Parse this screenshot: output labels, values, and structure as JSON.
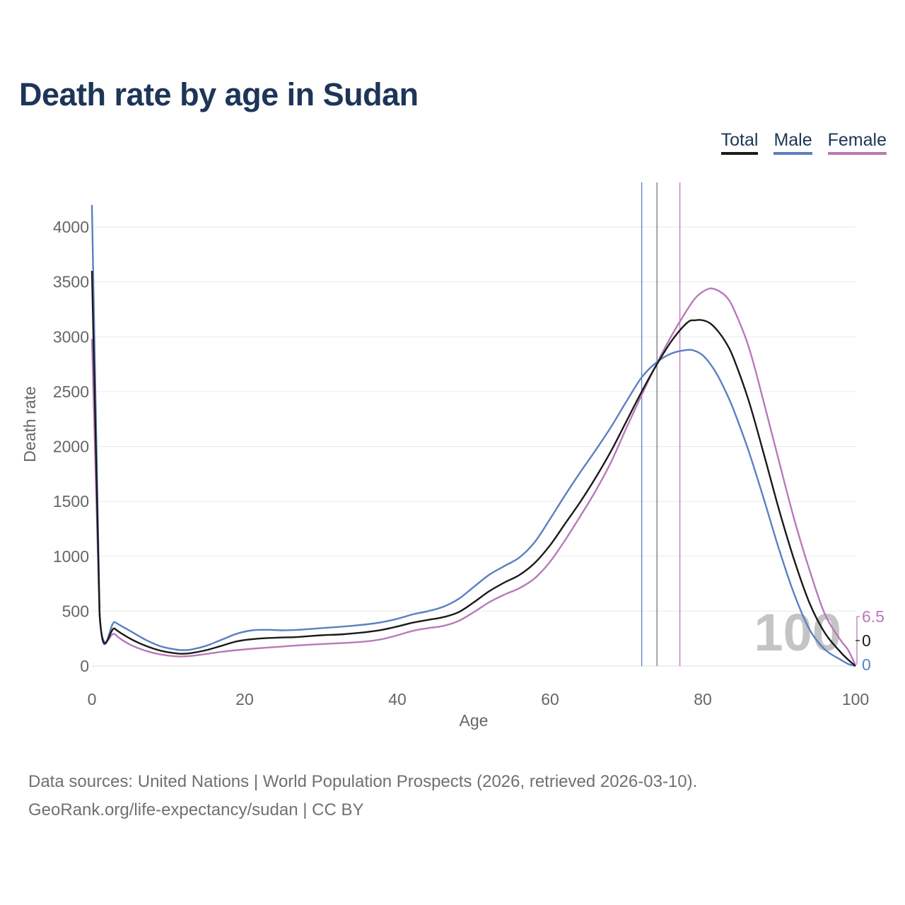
{
  "title": "Death rate by age in Sudan",
  "legend": [
    {
      "label": "Total",
      "color": "#1a1a1a"
    },
    {
      "label": "Male",
      "color": "#5a7fc2"
    },
    {
      "label": "Female",
      "color": "#b87ab8"
    }
  ],
  "footer": {
    "line1": "Data sources: United Nations | World Population Prospects (2026, retrieved 2026-03-10).",
    "line2": "GeoRank.org/life-expectancy/sudan | CC BY"
  },
  "chart_data": {
    "type": "line",
    "title": "Death rate by age in Sudan",
    "xlabel": "Age",
    "ylabel": "Death rate",
    "xlim": [
      0,
      100
    ],
    "ylim": [
      0,
      4300
    ],
    "xticks": [
      0,
      20,
      40,
      60,
      80,
      100
    ],
    "yticks": [
      0,
      500,
      1000,
      1500,
      2000,
      2500,
      3000,
      3500,
      4000
    ],
    "grid": true,
    "legend_position": "top-right",
    "watermark": "100",
    "vertical_lines": [
      {
        "name": "Male",
        "x": 72,
        "color": "#5a7fc2"
      },
      {
        "name": "Total",
        "x": 74,
        "color": "#777777"
      },
      {
        "name": "Female",
        "x": 77,
        "color": "#b87ab8"
      }
    ],
    "end_labels": [
      {
        "series": "Female",
        "label": "6.5",
        "color": "#b87ab8"
      },
      {
        "series": "Total",
        "label": "0",
        "color": "#1a1a1a"
      },
      {
        "series": "Male",
        "label": "0",
        "color": "#5a7fc2"
      }
    ],
    "x": [
      0,
      1,
      3,
      5,
      7,
      9,
      11,
      12,
      13,
      15,
      17,
      19,
      21,
      23,
      25,
      27,
      30,
      33,
      36,
      38,
      40,
      42,
      44,
      46,
      48,
      50,
      52,
      54,
      56,
      58,
      60,
      62,
      64,
      66,
      68,
      70,
      72,
      74,
      76,
      78,
      79,
      80,
      81,
      82,
      83,
      84,
      86,
      88,
      90,
      92,
      94,
      96,
      98,
      99,
      100
    ],
    "series": [
      {
        "name": "Total",
        "color": "#1a1a1a",
        "values": [
          3600,
          480,
          340,
          250,
          185,
          140,
          115,
          112,
          118,
          145,
          185,
          225,
          245,
          255,
          260,
          265,
          280,
          290,
          310,
          330,
          360,
          395,
          420,
          445,
          490,
          580,
          680,
          760,
          830,
          940,
          1100,
          1300,
          1500,
          1720,
          1960,
          2230,
          2500,
          2750,
          2970,
          3130,
          3150,
          3150,
          3120,
          3050,
          2950,
          2810,
          2420,
          1930,
          1420,
          960,
          570,
          300,
          130,
          60,
          0
        ]
      },
      {
        "name": "Male",
        "color": "#5a7fc2",
        "values": [
          4200,
          500,
          400,
          320,
          240,
          180,
          150,
          145,
          150,
          185,
          240,
          295,
          325,
          330,
          325,
          330,
          345,
          360,
          380,
          400,
          430,
          470,
          500,
          540,
          610,
          720,
          830,
          910,
          990,
          1130,
          1340,
          1560,
          1770,
          1970,
          2180,
          2410,
          2630,
          2770,
          2850,
          2880,
          2870,
          2830,
          2750,
          2640,
          2500,
          2340,
          1960,
          1520,
          1060,
          650,
          330,
          150,
          60,
          20,
          0
        ]
      },
      {
        "name": "Female",
        "color": "#b87ab8",
        "values": [
          2980,
          460,
          290,
          195,
          140,
          105,
          88,
          88,
          92,
          110,
          130,
          145,
          158,
          168,
          178,
          188,
          200,
          210,
          225,
          245,
          280,
          320,
          345,
          365,
          410,
          490,
          580,
          650,
          710,
          800,
          950,
          1150,
          1370,
          1600,
          1860,
          2170,
          2470,
          2760,
          3020,
          3250,
          3350,
          3410,
          3440,
          3420,
          3370,
          3260,
          2910,
          2400,
          1860,
          1330,
          870,
          470,
          240,
          150,
          6.5
        ]
      }
    ]
  }
}
